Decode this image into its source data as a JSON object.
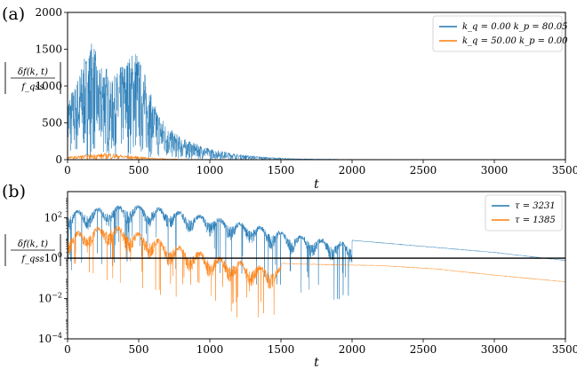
{
  "chart_data": [
    {
      "type": "line",
      "panel_label": "(a)",
      "xlabel": "t",
      "ylabel": "|δf(k,t) / f_qss|",
      "ylabel_parts": {
        "numerator": "δf(k, t)",
        "denominator": "f_qss"
      },
      "xlim": [
        0,
        3500
      ],
      "ylim": [
        0,
        2000
      ],
      "xticks": [
        0,
        500,
        1000,
        1500,
        2000,
        2500,
        3000,
        3500
      ],
      "yticks": [
        0,
        500,
        1000,
        1500,
        2000
      ],
      "yscale": "linear",
      "legend_position": "top-right",
      "series": [
        {
          "name": "k_q = 0.00   k_p = 80.05",
          "color": "#1f77b4",
          "envelope_x": [
            0,
            50,
            100,
            150,
            180,
            220,
            260,
            300,
            350,
            400,
            450,
            480,
            500,
            550,
            600,
            700,
            800,
            900,
            1000,
            1200,
            1400,
            1600,
            2000,
            2500,
            3000,
            3500
          ],
          "envelope_y": [
            900,
            1000,
            1300,
            1500,
            1680,
            1200,
            1400,
            1050,
            1200,
            1350,
            1450,
            1550,
            1400,
            1150,
            800,
            450,
            300,
            220,
            150,
            75,
            35,
            15,
            5,
            1,
            0,
            0
          ]
        },
        {
          "name": "k_q = 50.00   k_p = 0.00",
          "color": "#ff7f0e",
          "envelope_x": [
            0,
            100,
            200,
            300,
            400,
            500,
            600,
            700,
            800,
            1000,
            1500,
            3500
          ],
          "envelope_y": [
            40,
            60,
            80,
            90,
            60,
            45,
            25,
            12,
            6,
            2,
            0,
            0
          ]
        }
      ]
    },
    {
      "type": "line",
      "panel_label": "(b)",
      "xlabel": "t",
      "ylabel": "|δf(k,t) / f_qss|",
      "ylabel_parts": {
        "numerator": "δf(k, t)",
        "denominator": "f_qss"
      },
      "xlim": [
        0,
        3500
      ],
      "ylim": [
        0.0001,
        2000
      ],
      "xticks": [
        0,
        500,
        1000,
        1500,
        2000,
        2500,
        3000,
        3500
      ],
      "yticks": [
        0.0001,
        0.01,
        1,
        100
      ],
      "ytick_labels": {
        "base": "10",
        "exponents": [
          "−4",
          "−2",
          "0",
          "2"
        ]
      },
      "yscale": "log",
      "reference_line_y": 1,
      "legend_position": "top-right",
      "series": [
        {
          "name": "τ = 3231",
          "color": "#1f77b4",
          "tau": 3231,
          "envelope_x": [
            0,
            200,
            450,
            700,
            1000,
            1300,
            1600,
            2000,
            2500,
            3000,
            3500
          ],
          "envelope_y": [
            300,
            450,
            700,
            420,
            180,
            70,
            22,
            8,
            4,
            2,
            0.8
          ]
        },
        {
          "name": "τ = 1385",
          "color": "#ff7f0e",
          "tau": 1385,
          "envelope_x": [
            0,
            150,
            300,
            500,
            800,
            1100,
            1400,
            1800,
            2200,
            2600,
            3000,
            3500
          ],
          "envelope_y": [
            25,
            45,
            80,
            30,
            6,
            1.6,
            0.6,
            0.5,
            0.45,
            0.3,
            0.15,
            0.07
          ]
        }
      ]
    }
  ]
}
